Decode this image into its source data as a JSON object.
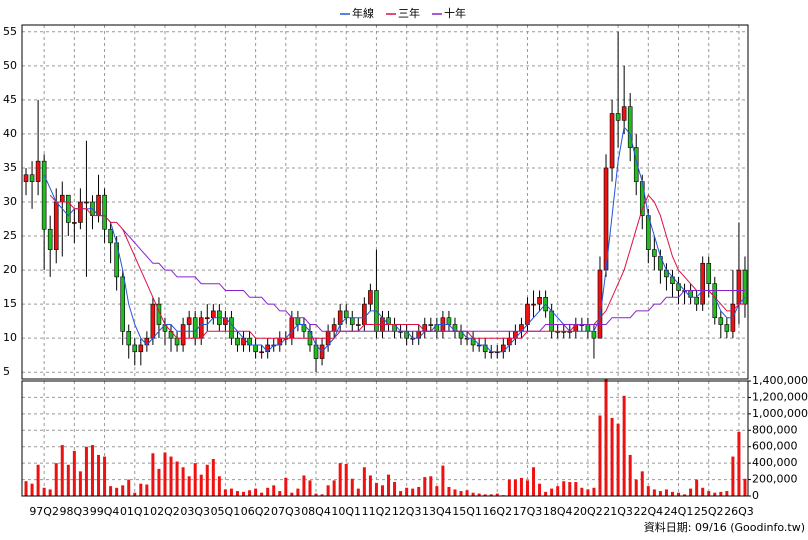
{
  "chart_data": {
    "type": "candlestick",
    "categories": [
      null,
      null,
      null,
      "97Q2",
      null,
      null,
      null,
      null,
      "98Q3",
      null,
      null,
      null,
      null,
      "99Q4",
      null,
      null,
      null,
      null,
      "01Q1",
      null,
      null,
      null,
      null,
      "02Q2",
      null,
      null,
      null,
      null,
      "03Q3",
      null,
      null,
      null,
      null,
      "05Q1",
      null,
      null,
      null,
      null,
      "06Q2",
      null,
      null,
      null,
      null,
      "07Q3",
      null,
      null,
      null,
      null,
      "08Q4",
      null,
      null,
      null,
      null,
      "10Q1",
      null,
      null,
      null,
      null,
      "11Q2",
      null,
      null,
      null,
      null,
      "12Q3",
      null,
      null,
      null,
      null,
      "13Q4",
      null,
      null,
      null,
      null,
      "15Q1",
      null,
      null,
      null,
      null,
      "16Q2",
      null,
      null,
      null,
      null,
      "17Q3",
      null,
      null,
      null,
      null,
      "18Q4",
      null,
      null,
      null,
      null,
      "20Q2",
      null,
      null,
      null,
      null,
      "21Q3",
      null,
      null,
      null,
      null,
      "22Q4",
      null,
      null,
      null,
      null,
      "24Q1",
      null,
      null,
      null,
      null,
      "25Q2",
      null,
      null,
      null,
      null,
      "26Q3",
      null
    ],
    "open": [
      33,
      34,
      33,
      36,
      26,
      23,
      30,
      31,
      27,
      27,
      30,
      30,
      28,
      31,
      26,
      24,
      19,
      11,
      9,
      8,
      9,
      10,
      15,
      12,
      11,
      10,
      9,
      12,
      13,
      10,
      13,
      13,
      14,
      12,
      13,
      10,
      9,
      10,
      9,
      8,
      8,
      9,
      9,
      10,
      10,
      13,
      12,
      11,
      9,
      7,
      9,
      11,
      12,
      14,
      13,
      12,
      12,
      15,
      17,
      11,
      13,
      12,
      11,
      11,
      10,
      10,
      11,
      12,
      12,
      11,
      13,
      12,
      11,
      10,
      10,
      9,
      9,
      8,
      8,
      8,
      9,
      10,
      11,
      12,
      15,
      15,
      16,
      14,
      11,
      11,
      11,
      11,
      12,
      12,
      11,
      10,
      20,
      35,
      43,
      42,
      44,
      38,
      33,
      28,
      23,
      22,
      20,
      19,
      18,
      17,
      17,
      16,
      15,
      21,
      18,
      13,
      12,
      11,
      15,
      20
    ],
    "high": [
      35,
      36,
      45,
      37,
      28,
      32,
      33,
      31,
      29,
      32,
      39,
      31,
      34,
      32,
      27,
      25,
      20,
      12,
      10,
      10,
      11,
      16,
      16,
      13,
      12,
      11,
      13,
      14,
      14,
      14,
      15,
      15,
      15,
      14,
      14,
      11,
      11,
      11,
      10,
      9,
      10,
      10,
      11,
      11,
      14,
      14,
      13,
      12,
      10,
      10,
      12,
      13,
      15,
      15,
      14,
      13,
      16,
      18,
      23,
      14,
      14,
      13,
      12,
      12,
      11,
      12,
      13,
      13,
      13,
      14,
      14,
      13,
      12,
      11,
      11,
      10,
      10,
      9,
      9,
      10,
      11,
      12,
      13,
      16,
      17,
      17,
      17,
      15,
      12,
      12,
      12,
      13,
      13,
      13,
      12,
      22,
      37,
      45,
      55,
      50,
      46,
      40,
      34,
      29,
      25,
      23,
      21,
      20,
      19,
      18,
      18,
      17,
      22,
      22,
      19,
      14,
      13,
      20,
      27,
      22
    ],
    "low": [
      31,
      29,
      31,
      20,
      19,
      21,
      22,
      25,
      24,
      26,
      19,
      26,
      27,
      24,
      21,
      17,
      9,
      7,
      6,
      6,
      8,
      9,
      10,
      9,
      8,
      8,
      8,
      10,
      9,
      9,
      11,
      12,
      11,
      11,
      9,
      8,
      8,
      8,
      7,
      7,
      7,
      8,
      8,
      9,
      9,
      11,
      10,
      8,
      5,
      6,
      8,
      10,
      11,
      12,
      11,
      11,
      11,
      14,
      10,
      10,
      11,
      10,
      10,
      9,
      9,
      9,
      10,
      11,
      10,
      10,
      11,
      10,
      9,
      9,
      8,
      8,
      7,
      7,
      7,
      7,
      8,
      9,
      10,
      11,
      13,
      14,
      13,
      10,
      10,
      10,
      10,
      10,
      11,
      10,
      7,
      10,
      19,
      33,
      38,
      40,
      36,
      31,
      26,
      21,
      20,
      18,
      17,
      16,
      15,
      15,
      15,
      14,
      14,
      16,
      12,
      10,
      10,
      10,
      12,
      13
    ],
    "close": [
      34,
      33,
      36,
      26,
      23,
      30,
      31,
      27,
      27,
      30,
      30,
      28,
      31,
      26,
      24,
      19,
      11,
      9,
      8,
      9,
      10,
      15,
      12,
      11,
      10,
      9,
      12,
      13,
      10,
      13,
      13,
      14,
      12,
      13,
      10,
      9,
      10,
      9,
      8,
      8,
      9,
      9,
      10,
      10,
      13,
      12,
      11,
      9,
      7,
      9,
      11,
      12,
      14,
      13,
      12,
      12,
      15,
      17,
      11,
      13,
      12,
      11,
      11,
      10,
      10,
      11,
      12,
      12,
      11,
      13,
      12,
      11,
      10,
      10,
      9,
      9,
      8,
      8,
      8,
      9,
      10,
      11,
      12,
      15,
      15,
      16,
      14,
      11,
      11,
      11,
      11,
      12,
      12,
      11,
      10,
      20,
      35,
      43,
      42,
      44,
      38,
      33,
      28,
      23,
      22,
      20,
      19,
      18,
      17,
      17,
      16,
      15,
      21,
      18,
      13,
      12,
      11,
      15,
      20,
      15
    ],
    "up_color": "#ee1111",
    "down_color": "#22bb22",
    "ylim": [
      4,
      56
    ],
    "yticks": [
      5,
      10,
      15,
      20,
      25,
      30,
      35,
      40,
      45,
      50,
      55
    ],
    "grid": true,
    "legend": "top",
    "series": [
      {
        "name": "年線",
        "color": "#2255dd",
        "values": [
          null,
          null,
          null,
          34,
          32,
          30,
          29,
          28,
          29,
          29,
          29,
          29,
          28,
          28,
          27,
          24,
          20,
          15,
          12,
          10,
          9,
          10,
          11,
          12,
          12,
          11,
          11,
          11,
          11,
          12,
          12,
          13,
          13,
          13,
          12,
          11,
          10,
          9,
          9,
          9,
          8,
          9,
          9,
          10,
          11,
          12,
          12,
          11,
          9,
          8,
          9,
          10,
          12,
          13,
          13,
          13,
          13,
          14,
          14,
          13,
          12,
          12,
          11,
          11,
          10,
          10,
          11,
          11,
          12,
          12,
          12,
          11,
          11,
          10,
          10,
          9,
          9,
          8,
          8,
          8,
          9,
          10,
          11,
          12,
          13,
          14,
          15,
          14,
          13,
          12,
          11,
          11,
          11,
          11,
          11,
          13,
          20,
          28,
          36,
          41,
          40,
          36,
          33,
          28,
          25,
          22,
          20,
          19,
          18,
          17,
          16,
          16,
          17,
          17,
          16,
          14,
          13,
          13,
          15,
          16
        ]
      },
      {
        "name": "三年",
        "color": "#dd1144",
        "values": [
          null,
          null,
          null,
          null,
          31,
          30,
          30,
          30,
          29,
          29,
          29,
          28,
          28,
          28,
          27,
          27,
          26,
          24,
          22,
          20,
          18,
          16,
          14,
          12,
          11,
          10,
          10,
          10,
          10,
          10,
          11,
          11,
          11,
          11,
          11,
          11,
          11,
          11,
          10,
          10,
          10,
          10,
          10,
          10,
          10,
          10,
          10,
          10,
          10,
          10,
          10,
          10,
          11,
          11,
          11,
          11,
          12,
          12,
          12,
          12,
          12,
          12,
          12,
          12,
          12,
          12,
          11,
          11,
          11,
          11,
          11,
          11,
          11,
          11,
          10,
          10,
          10,
          10,
          10,
          10,
          10,
          10,
          10,
          11,
          11,
          11,
          11,
          11,
          11,
          11,
          11,
          12,
          12,
          12,
          12,
          13,
          14,
          16,
          18,
          20,
          23,
          26,
          29,
          31,
          30,
          28,
          25,
          22,
          20,
          19,
          18,
          17,
          17,
          17,
          16,
          15,
          14,
          14,
          15,
          15
        ]
      },
      {
        "name": "十年",
        "color": "#8822cc",
        "values": [
          null,
          null,
          null,
          null,
          null,
          null,
          null,
          null,
          null,
          null,
          null,
          null,
          null,
          null,
          null,
          null,
          26,
          25,
          24,
          23,
          22,
          21,
          21,
          20,
          20,
          19,
          19,
          19,
          19,
          18,
          18,
          18,
          18,
          17,
          17,
          17,
          17,
          16,
          16,
          16,
          15,
          15,
          14,
          14,
          13,
          13,
          13,
          12,
          12,
          11,
          11,
          11,
          11,
          11,
          11,
          11,
          11,
          11,
          11,
          11,
          11,
          11,
          11,
          11,
          11,
          11,
          11,
          11,
          11,
          11,
          11,
          11,
          11,
          11,
          11,
          11,
          11,
          11,
          11,
          11,
          11,
          11,
          11,
          11,
          11,
          11,
          12,
          12,
          12,
          12,
          12,
          12,
          12,
          12,
          12,
          12,
          12,
          13,
          13,
          13,
          13,
          14,
          14,
          14,
          15,
          15,
          16,
          16,
          16,
          17,
          17,
          17,
          17,
          17,
          17,
          17,
          17,
          17,
          17,
          17
        ]
      }
    ],
    "volume": {
      "color": "#ee1111",
      "values": [
        180000,
        150000,
        380000,
        100000,
        80000,
        400000,
        620000,
        380000,
        550000,
        300000,
        600000,
        620000,
        500000,
        480000,
        120000,
        100000,
        130000,
        200000,
        40000,
        150000,
        140000,
        520000,
        330000,
        530000,
        480000,
        420000,
        350000,
        240000,
        400000,
        260000,
        380000,
        450000,
        240000,
        80000,
        90000,
        60000,
        50000,
        70000,
        90000,
        40000,
        100000,
        130000,
        60000,
        220000,
        40000,
        90000,
        250000,
        190000,
        30000,
        20000,
        130000,
        190000,
        400000,
        390000,
        210000,
        90000,
        350000,
        250000,
        160000,
        130000,
        260000,
        170000,
        60000,
        100000,
        90000,
        110000,
        230000,
        240000,
        120000,
        370000,
        110000,
        80000,
        60000,
        70000,
        40000,
        30000,
        20000,
        20000,
        30000,
        10000,
        200000,
        200000,
        220000,
        190000,
        350000,
        150000,
        50000,
        90000,
        120000,
        180000,
        170000,
        170000,
        100000,
        80000,
        100000,
        980000,
        1420000,
        950000,
        880000,
        1220000,
        500000,
        200000,
        300000,
        120000,
        80000,
        60000,
        80000,
        50000,
        40000,
        20000,
        90000,
        200000,
        100000,
        60000,
        40000,
        50000,
        60000,
        480000,
        780000,
        210000
      ],
      "ylim": [
        0,
        1400000
      ],
      "yticks": [
        0,
        {
          "value": 200000,
          "label": "200,000"
        },
        {
          "value": 400000,
          "label": "400,000"
        },
        {
          "value": 600000,
          "label": "600,000"
        },
        {
          "value": 800000,
          "label": "800,000"
        },
        {
          "value": 1000000,
          "label": "1,000,000"
        },
        {
          "value": 1200000,
          "label": "1,200,000"
        },
        {
          "value": 1400000,
          "label": "1,400,000"
        }
      ]
    },
    "footer": "資料日期: 09/16 (Goodinfo.tw)"
  }
}
